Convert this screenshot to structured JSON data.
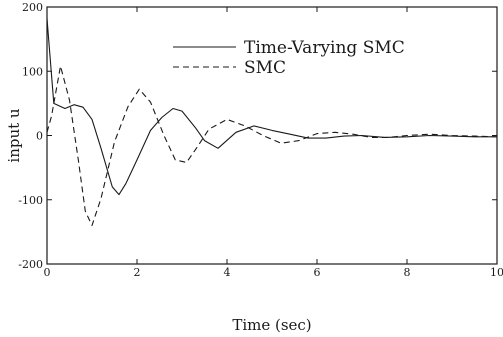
{
  "chart_data": {
    "type": "line",
    "title": "",
    "xlabel": "Time  (sec)",
    "ylabel": "input  u",
    "xlim": [
      0,
      10
    ],
    "ylim": [
      -200,
      200
    ],
    "xticks": [
      0,
      2,
      4,
      6,
      8,
      10
    ],
    "xtick_labels": [
      "0",
      "2",
      "4",
      "6",
      "8",
      "10"
    ],
    "yticks": [
      -200,
      -100,
      0,
      100,
      200
    ],
    "ytick_labels": [
      "-200",
      "-100",
      "0",
      "100",
      "200"
    ],
    "grid": false,
    "legend_position": "top-right",
    "series": [
      {
        "name": "Time-Varying SMC",
        "style": "solid",
        "color": "#1a1a1a",
        "x": [
          0.0,
          0.15,
          0.4,
          0.6,
          0.8,
          1.0,
          1.2,
          1.45,
          1.6,
          1.75,
          2.0,
          2.3,
          2.55,
          2.8,
          3.0,
          3.3,
          3.5,
          3.8,
          4.2,
          4.6,
          5.0,
          5.4,
          5.8,
          6.2,
          6.6,
          7.0,
          7.5,
          8.0,
          8.5,
          9.0,
          9.5,
          10.0
        ],
        "y": [
          182,
          50,
          42,
          48,
          44,
          25,
          -20,
          -80,
          -92,
          -75,
          -38,
          8,
          28,
          42,
          38,
          12,
          -8,
          -20,
          5,
          15,
          8,
          2,
          -4,
          -4,
          -1,
          0,
          -3,
          -2,
          0,
          -1,
          -2,
          -2
        ]
      },
      {
        "name": "SMC",
        "style": "dashed",
        "color": "#1a1a1a",
        "x": [
          0.0,
          0.1,
          0.3,
          0.5,
          0.7,
          0.85,
          1.0,
          1.2,
          1.5,
          1.8,
          2.05,
          2.3,
          2.6,
          2.85,
          3.1,
          3.3,
          3.6,
          4.0,
          4.4,
          4.8,
          5.2,
          5.6,
          6.0,
          6.4,
          6.8,
          7.2,
          7.6,
          8.0,
          8.5,
          9.0,
          9.5,
          10.0
        ],
        "y": [
          5,
          30,
          108,
          55,
          -40,
          -118,
          -140,
          -98,
          -10,
          45,
          72,
          52,
          0,
          -38,
          -42,
          -22,
          10,
          25,
          15,
          0,
          -12,
          -8,
          3,
          5,
          2,
          -3,
          -3,
          0,
          2,
          0,
          -1,
          -2
        ]
      }
    ]
  }
}
